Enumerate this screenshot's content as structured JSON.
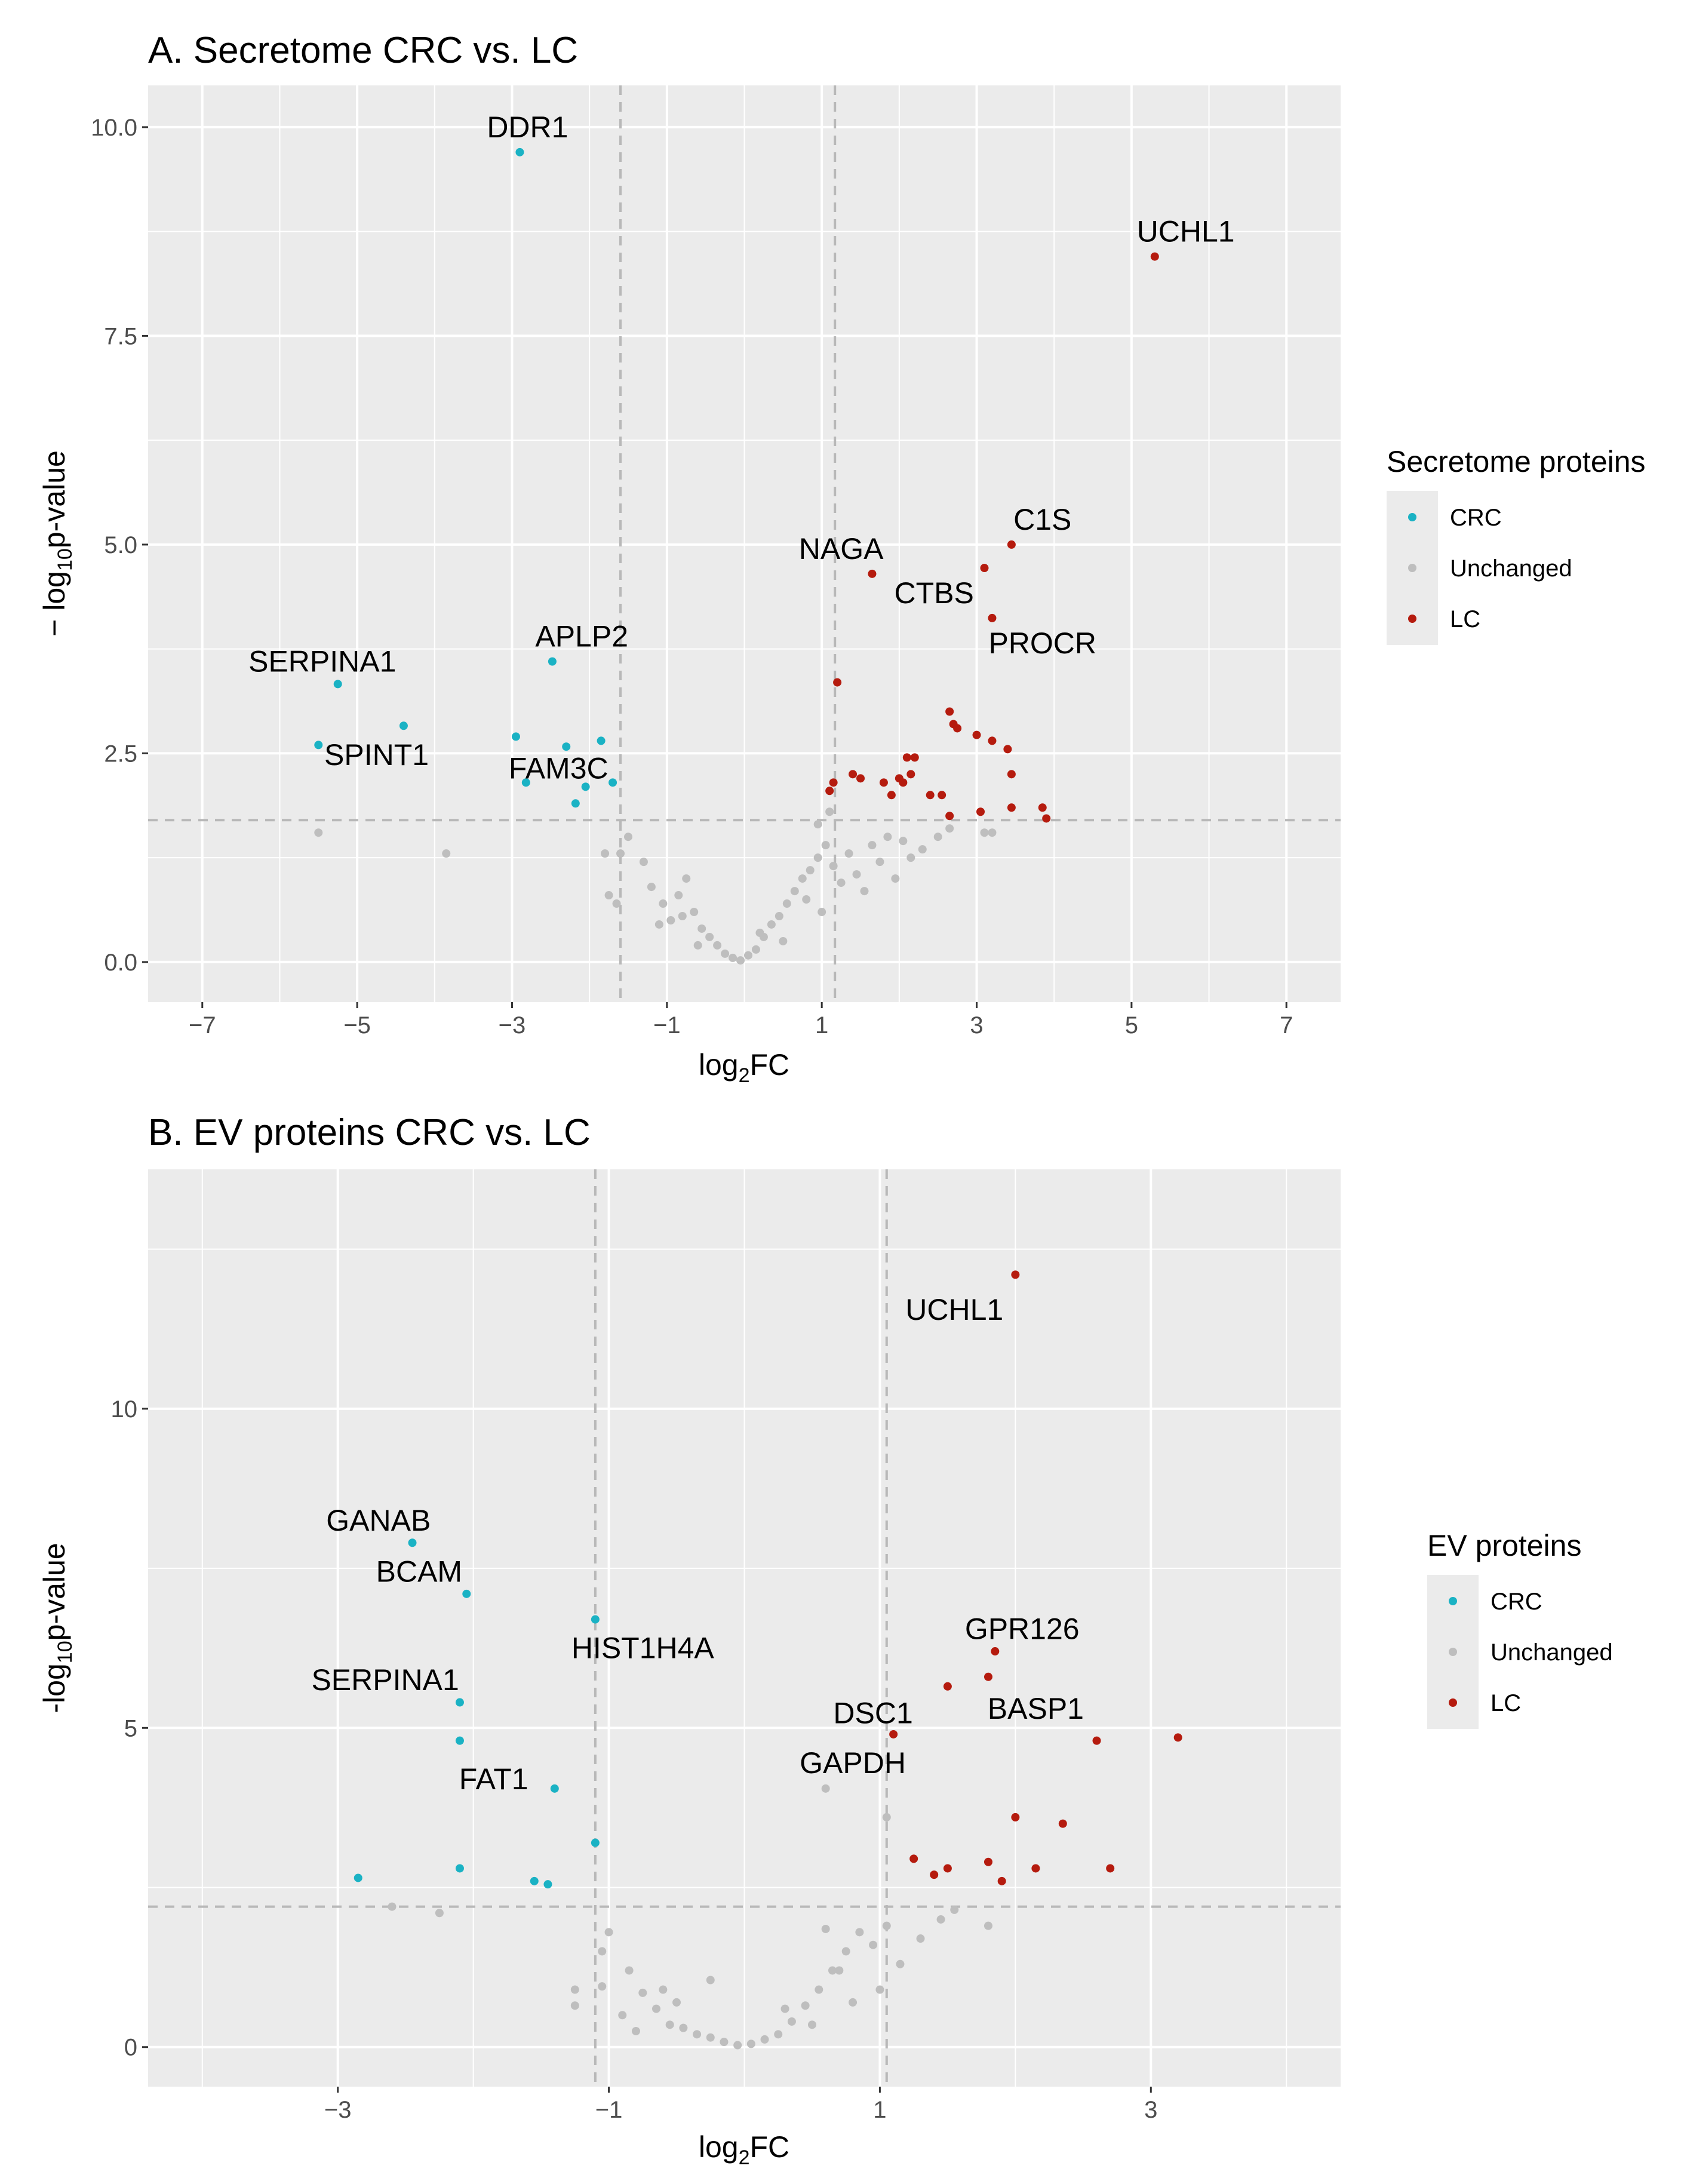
{
  "colors": {
    "crc": "#1ab2c4",
    "unchanged": "#bebebe",
    "lc": "#b51b0e",
    "panel": "#ebebeb",
    "grid": "#ffffff",
    "dash": "#b8b8b8"
  },
  "chart_data": [
    {
      "id": "A",
      "type": "scatter",
      "title": "A. Secretome CRC vs. LC",
      "xlabel_main": "log",
      "xlabel_sub": "2",
      "xlabel_tail": "FC",
      "ylabel_pre": "− log",
      "ylabel_sub": "10",
      "ylabel_tail": "p-value",
      "xlim": [
        -7.7,
        7.7
      ],
      "ylim": [
        -0.48,
        10.5
      ],
      "xticks": [
        -7,
        -5,
        -3,
        -1,
        1,
        3,
        5,
        7
      ],
      "xtick_labels": [
        "−7",
        "−5",
        "−3",
        "−1",
        "1",
        "3",
        "5",
        "7"
      ],
      "yticks": [
        0,
        2.5,
        5,
        7.5,
        10
      ],
      "ytick_labels": [
        "0.0",
        "2.5",
        "5.0",
        "7.5",
        "10.0"
      ],
      "vlines": [
        -1.6,
        1.17
      ],
      "hline": 1.7,
      "legend": {
        "title": "Secretome proteins",
        "items": [
          "CRC",
          "Unchanged",
          "LC"
        ]
      },
      "series": [
        {
          "name": "CRC",
          "points": [
            [
              -5.25,
              3.33
            ],
            [
              -4.4,
              2.83
            ],
            [
              -5.5,
              2.6
            ],
            [
              -2.9,
              9.7
            ],
            [
              -2.48,
              3.6
            ],
            [
              -2.95,
              2.7
            ],
            [
              -2.3,
              2.58
            ],
            [
              -1.85,
              2.65
            ],
            [
              -2.82,
              2.15
            ],
            [
              -2.05,
              2.1
            ],
            [
              -1.7,
              2.15
            ],
            [
              -2.18,
              1.9
            ]
          ]
        },
        {
          "name": "Unchanged",
          "points": [
            [
              -5.5,
              1.55
            ],
            [
              -3.85,
              1.3
            ],
            [
              -1.8,
              1.3
            ],
            [
              -1.75,
              0.8
            ],
            [
              -1.65,
              0.7
            ],
            [
              -1.3,
              1.2
            ],
            [
              -1.2,
              0.9
            ],
            [
              -1.05,
              0.7
            ],
            [
              -0.95,
              0.5
            ],
            [
              -0.85,
              0.8
            ],
            [
              -0.75,
              1.0
            ],
            [
              -0.65,
              0.6
            ],
            [
              -0.55,
              0.4
            ],
            [
              -0.45,
              0.3
            ],
            [
              -0.35,
              0.2
            ],
            [
              -0.25,
              0.1
            ],
            [
              -0.15,
              0.05
            ],
            [
              -0.05,
              0.02
            ],
            [
              0.05,
              0.08
            ],
            [
              0.15,
              0.15
            ],
            [
              0.25,
              0.3
            ],
            [
              0.35,
              0.45
            ],
            [
              0.45,
              0.55
            ],
            [
              0.55,
              0.7
            ],
            [
              0.65,
              0.85
            ],
            [
              0.75,
              1.0
            ],
            [
              0.85,
              1.1
            ],
            [
              0.95,
              1.25
            ],
            [
              1.05,
              1.4
            ],
            [
              1.15,
              1.15
            ],
            [
              1.25,
              0.95
            ],
            [
              1.35,
              1.3
            ],
            [
              1.45,
              1.05
            ],
            [
              1.55,
              0.85
            ],
            [
              1.65,
              1.4
            ],
            [
              1.75,
              1.2
            ],
            [
              1.85,
              1.5
            ],
            [
              1.95,
              1.0
            ],
            [
              2.05,
              1.45
            ],
            [
              2.15,
              1.25
            ],
            [
              2.3,
              1.35
            ],
            [
              2.5,
              1.5
            ],
            [
              0.2,
              0.35
            ],
            [
              0.5,
              0.25
            ],
            [
              0.8,
              0.75
            ],
            [
              1.0,
              0.6
            ],
            [
              -0.8,
              0.55
            ],
            [
              -1.1,
              0.45
            ],
            [
              -0.6,
              0.2
            ],
            [
              1.1,
              1.8
            ],
            [
              0.95,
              1.65
            ],
            [
              2.65,
              1.6
            ],
            [
              3.1,
              1.55
            ],
            [
              3.2,
              1.55
            ],
            [
              -1.5,
              1.5
            ],
            [
              -1.6,
              1.3
            ]
          ]
        },
        {
          "name": "LC",
          "points": [
            [
              5.3,
              8.45
            ],
            [
              3.45,
              5.0
            ],
            [
              3.1,
              4.72
            ],
            [
              1.65,
              4.65
            ],
            [
              3.2,
              4.12
            ],
            [
              1.2,
              3.35
            ],
            [
              2.65,
              3.0
            ],
            [
              2.7,
              2.85
            ],
            [
              2.75,
              2.8
            ],
            [
              3.0,
              2.72
            ],
            [
              3.2,
              2.65
            ],
            [
              3.4,
              2.55
            ],
            [
              3.45,
              2.25
            ],
            [
              2.1,
              2.45
            ],
            [
              2.2,
              2.45
            ],
            [
              1.4,
              2.25
            ],
            [
              1.5,
              2.2
            ],
            [
              1.15,
              2.15
            ],
            [
              1.1,
              2.05
            ],
            [
              1.8,
              2.15
            ],
            [
              2.0,
              2.2
            ],
            [
              2.05,
              2.15
            ],
            [
              2.15,
              2.25
            ],
            [
              1.9,
              2.0
            ],
            [
              2.4,
              2.0
            ],
            [
              2.55,
              2.0
            ],
            [
              3.45,
              1.85
            ],
            [
              3.85,
              1.85
            ],
            [
              3.9,
              1.72
            ],
            [
              2.65,
              1.75
            ],
            [
              3.05,
              1.8
            ]
          ]
        }
      ],
      "labels": [
        {
          "text": "DDR1",
          "x": -2.8,
          "y": 10.0
        },
        {
          "text": "UCHL1",
          "x": 5.7,
          "y": 8.75
        },
        {
          "text": "C1S",
          "x": 3.85,
          "y": 5.3
        },
        {
          "text": "NAGA",
          "x": 1.25,
          "y": 4.95
        },
        {
          "text": "CTBS",
          "x": 2.45,
          "y": 4.42
        },
        {
          "text": "PROCR",
          "x": 3.85,
          "y": 3.82
        },
        {
          "text": "APLP2",
          "x": -2.1,
          "y": 3.9
        },
        {
          "text": "SERPINA1",
          "x": -5.45,
          "y": 3.6
        },
        {
          "text": "SPINT1",
          "x": -4.75,
          "y": 2.48
        },
        {
          "text": "FAM3C",
          "x": -2.4,
          "y": 2.32
        }
      ]
    },
    {
      "id": "B",
      "type": "scatter",
      "title": "B. EV proteins CRC vs. LC",
      "xlabel_main": "log",
      "xlabel_sub": "2",
      "xlabel_tail": "FC",
      "ylabel_pre": "-log",
      "ylabel_sub": "10",
      "ylabel_tail": "p-value",
      "xlim": [
        -4.4,
        4.4
      ],
      "ylim": [
        -0.62,
        13.75
      ],
      "xticks": [
        -3,
        -1,
        1,
        3
      ],
      "xtick_labels": [
        "−3",
        "−1",
        "1",
        "3"
      ],
      "yticks": [
        0,
        5,
        10
      ],
      "ytick_labels": [
        "0",
        "5",
        "10"
      ],
      "vlines": [
        -1.1,
        1.05
      ],
      "hline": 2.2,
      "legend": {
        "title": "EV proteins",
        "items": [
          "CRC",
          "Unchanged",
          "LC"
        ]
      },
      "series": [
        {
          "name": "CRC",
          "points": [
            [
              -2.45,
              7.9
            ],
            [
              -2.05,
              7.1
            ],
            [
              -1.1,
              6.7
            ],
            [
              -2.1,
              5.4
            ],
            [
              -2.1,
              4.8
            ],
            [
              -1.4,
              4.05
            ],
            [
              -1.1,
              3.2
            ],
            [
              -2.1,
              2.8
            ],
            [
              -2.85,
              2.65
            ],
            [
              -1.55,
              2.6
            ],
            [
              -1.45,
              2.55
            ]
          ]
        },
        {
          "name": "Unchanged",
          "points": [
            [
              0.6,
              4.05
            ],
            [
              1.05,
              3.6
            ],
            [
              -2.6,
              2.2
            ],
            [
              -2.25,
              2.1
            ],
            [
              -1.25,
              0.9
            ],
            [
              -1.25,
              0.65
            ],
            [
              -1.0,
              1.8
            ],
            [
              -1.05,
              1.5
            ],
            [
              -1.05,
              0.95
            ],
            [
              -0.85,
              1.2
            ],
            [
              -0.75,
              0.85
            ],
            [
              -0.65,
              0.6
            ],
            [
              -0.55,
              0.35
            ],
            [
              -0.45,
              0.3
            ],
            [
              -0.35,
              0.2
            ],
            [
              -0.25,
              0.15
            ],
            [
              -0.15,
              0.08
            ],
            [
              -0.05,
              0.03
            ],
            [
              0.05,
              0.05
            ],
            [
              0.15,
              0.12
            ],
            [
              0.25,
              0.2
            ],
            [
              0.35,
              0.4
            ],
            [
              0.45,
              0.65
            ],
            [
              0.55,
              0.9
            ],
            [
              0.65,
              1.2
            ],
            [
              0.75,
              1.5
            ],
            [
              0.85,
              1.8
            ],
            [
              0.95,
              1.6
            ],
            [
              1.05,
              1.9
            ],
            [
              1.15,
              1.3
            ],
            [
              1.3,
              1.7
            ],
            [
              1.45,
              2.0
            ],
            [
              1.55,
              2.15
            ],
            [
              1.8,
              1.9
            ],
            [
              0.6,
              1.85
            ],
            [
              0.7,
              1.2
            ],
            [
              0.8,
              0.7
            ],
            [
              -0.6,
              0.9
            ],
            [
              -0.9,
              0.5
            ],
            [
              -0.25,
              1.05
            ],
            [
              0.3,
              0.6
            ],
            [
              -0.8,
              0.25
            ],
            [
              -0.5,
              0.7
            ],
            [
              0.5,
              0.35
            ],
            [
              1.0,
              0.9
            ]
          ]
        },
        {
          "name": "LC",
          "points": [
            [
              2.0,
              12.1
            ],
            [
              1.85,
              6.2
            ],
            [
              1.5,
              5.65
            ],
            [
              1.8,
              5.8
            ],
            [
              1.1,
              4.9
            ],
            [
              2.6,
              4.8
            ],
            [
              3.2,
              4.85
            ],
            [
              2.0,
              3.6
            ],
            [
              2.35,
              3.5
            ],
            [
              1.25,
              2.95
            ],
            [
              1.4,
              2.7
            ],
            [
              1.5,
              2.8
            ],
            [
              1.8,
              2.9
            ],
            [
              2.15,
              2.8
            ],
            [
              2.7,
              2.8
            ],
            [
              1.9,
              2.6
            ]
          ]
        }
      ],
      "labels": [
        {
          "text": "UCHL1",
          "x": 1.55,
          "y": 11.55
        },
        {
          "text": "GANAB",
          "x": -2.7,
          "y": 8.25
        },
        {
          "text": "BCAM",
          "x": -2.4,
          "y": 7.45
        },
        {
          "text": "HIST1H4A",
          "x": -0.75,
          "y": 6.25
        },
        {
          "text": "SERPINA1",
          "x": -2.65,
          "y": 5.75
        },
        {
          "text": "FAT1",
          "x": -1.85,
          "y": 4.2
        },
        {
          "text": "GPR126",
          "x": 2.05,
          "y": 6.55
        },
        {
          "text": "BASP1",
          "x": 2.15,
          "y": 5.3
        },
        {
          "text": "DSC1",
          "x": 0.95,
          "y": 5.23
        },
        {
          "text": "GAPDH",
          "x": 0.8,
          "y": 4.45
        }
      ]
    }
  ]
}
